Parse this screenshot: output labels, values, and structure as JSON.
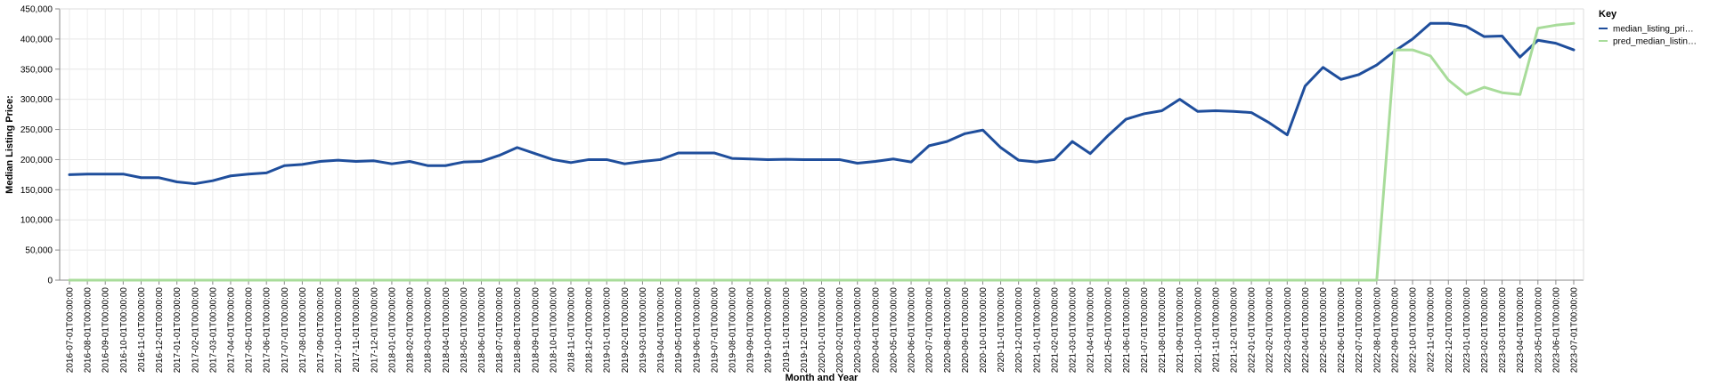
{
  "chart_data": {
    "type": "line",
    "xlabel": "Month and Year",
    "ylabel": "Median Listing Price:",
    "ylim": [
      0,
      450000
    ],
    "y_ticks": [
      0,
      50000,
      100000,
      150000,
      200000,
      250000,
      300000,
      350000,
      400000,
      450000
    ],
    "y_tick_labels": [
      "0",
      "50,000",
      "100,000",
      "150,000",
      "200,000",
      "250,000",
      "300,000",
      "350,000",
      "400,000",
      "450,000"
    ],
    "grid": true,
    "legend": {
      "title": "Key",
      "placement": "top-right"
    },
    "categories": [
      "2016-07-01T00:00:00",
      "2016-08-01T00:00:00",
      "2016-09-01T00:00:00",
      "2016-10-01T00:00:00",
      "2016-11-01T00:00:00",
      "2016-12-01T00:00:00",
      "2017-01-01T00:00:00",
      "2017-02-01T00:00:00",
      "2017-03-01T00:00:00",
      "2017-04-01T00:00:00",
      "2017-05-01T00:00:00",
      "2017-06-01T00:00:00",
      "2017-07-01T00:00:00",
      "2017-08-01T00:00:00",
      "2017-09-01T00:00:00",
      "2017-10-01T00:00:00",
      "2017-11-01T00:00:00",
      "2017-12-01T00:00:00",
      "2018-01-01T00:00:00",
      "2018-02-01T00:00:00",
      "2018-03-01T00:00:00",
      "2018-04-01T00:00:00",
      "2018-05-01T00:00:00",
      "2018-06-01T00:00:00",
      "2018-07-01T00:00:00",
      "2018-08-01T00:00:00",
      "2018-09-01T00:00:00",
      "2018-10-01T00:00:00",
      "2018-11-01T00:00:00",
      "2018-12-01T00:00:00",
      "2019-01-01T00:00:00",
      "2019-02-01T00:00:00",
      "2019-03-01T00:00:00",
      "2019-04-01T00:00:00",
      "2019-05-01T00:00:00",
      "2019-06-01T00:00:00",
      "2019-07-01T00:00:00",
      "2019-08-01T00:00:00",
      "2019-09-01T00:00:00",
      "2019-10-01T00:00:00",
      "2019-11-01T00:00:00",
      "2019-12-01T00:00:00",
      "2020-01-01T00:00:00",
      "2020-02-01T00:00:00",
      "2020-03-01T00:00:00",
      "2020-04-01T00:00:00",
      "2020-05-01T00:00:00",
      "2020-06-01T00:00:00",
      "2020-07-01T00:00:00",
      "2020-08-01T00:00:00",
      "2020-09-01T00:00:00",
      "2020-10-01T00:00:00",
      "2020-11-01T00:00:00",
      "2020-12-01T00:00:00",
      "2021-01-01T00:00:00",
      "2021-02-01T00:00:00",
      "2021-03-01T00:00:00",
      "2021-04-01T00:00:00",
      "2021-05-01T00:00:00",
      "2021-06-01T00:00:00",
      "2021-07-01T00:00:00",
      "2021-08-01T00:00:00",
      "2021-09-01T00:00:00",
      "2021-10-01T00:00:00",
      "2021-11-01T00:00:00",
      "2021-12-01T00:00:00",
      "2022-01-01T00:00:00",
      "2022-02-01T00:00:00",
      "2022-03-01T00:00:00",
      "2022-04-01T00:00:00",
      "2022-05-01T00:00:00",
      "2022-06-01T00:00:00",
      "2022-07-01T00:00:00",
      "2022-08-01T00:00:00",
      "2022-09-01T00:00:00",
      "2022-10-01T00:00:00",
      "2022-11-01T00:00:00",
      "2022-12-01T00:00:00",
      "2023-01-01T00:00:00",
      "2023-02-01T00:00:00",
      "2023-03-01T00:00:00",
      "2023-04-01T00:00:00",
      "2023-05-01T00:00:00",
      "2023-06-01T00:00:00",
      "2023-07-01T00:00:00"
    ],
    "series": [
      {
        "name": "median_listing_price",
        "legend_label": "median_listing_pri…",
        "color": "#1f4e9c",
        "values": [
          175000,
          176000,
          176000,
          176000,
          170000,
          170000,
          163000,
          160000,
          165000,
          173000,
          176000,
          178000,
          190000,
          192000,
          197000,
          199000,
          197000,
          198000,
          193000,
          197000,
          190000,
          190000,
          196000,
          197000,
          207000,
          220000,
          210000,
          200000,
          195000,
          200000,
          200000,
          193000,
          197000,
          200000,
          211000,
          211000,
          211000,
          202000,
          201000,
          200000,
          200500,
          200000,
          200000,
          200000,
          194000,
          197000,
          201000,
          196000,
          223000,
          230000,
          243000,
          249000,
          220000,
          199000,
          196000,
          200000,
          230000,
          210000,
          240000,
          267000,
          276000,
          281000,
          300000,
          280000,
          281000,
          280000,
          278000,
          261000,
          241000,
          322000,
          353000,
          333000,
          341000,
          357000,
          380000,
          400000,
          426000,
          426000,
          421000,
          404000,
          405000,
          370000,
          398000,
          393000,
          382000
        ]
      },
      {
        "name": "pred_median_listing_price",
        "legend_label": "pred_median_listin…",
        "color": "#a8dc9a",
        "values": [
          0,
          0,
          0,
          0,
          0,
          0,
          0,
          0,
          0,
          0,
          0,
          0,
          0,
          0,
          0,
          0,
          0,
          0,
          0,
          0,
          0,
          0,
          0,
          0,
          0,
          0,
          0,
          0,
          0,
          0,
          0,
          0,
          0,
          0,
          0,
          0,
          0,
          0,
          0,
          0,
          0,
          0,
          0,
          0,
          0,
          0,
          0,
          0,
          0,
          0,
          0,
          0,
          0,
          0,
          0,
          0,
          0,
          0,
          0,
          0,
          0,
          0,
          0,
          0,
          0,
          0,
          0,
          0,
          0,
          0,
          0,
          0,
          0,
          0,
          382000,
          382000,
          372000,
          332000,
          308000,
          320000,
          311000,
          308000,
          418000,
          423000,
          426000
        ]
      }
    ]
  }
}
